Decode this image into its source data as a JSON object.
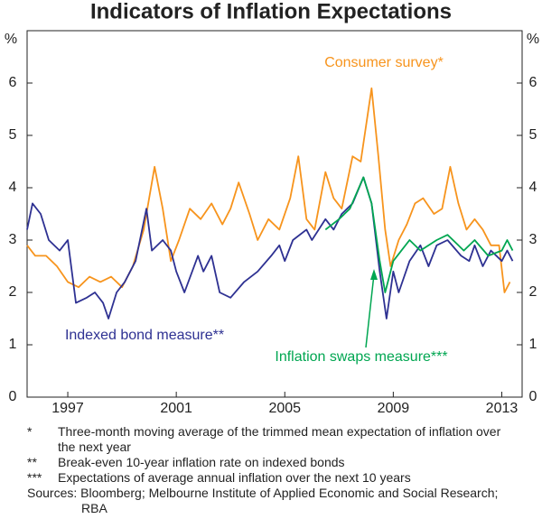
{
  "chart_data": {
    "type": "line",
    "title": "Indicators of Inflation Expectations",
    "y_unit": "%",
    "xlim": [
      1995.5,
      2013.75
    ],
    "xticks": [
      1997,
      2001,
      2005,
      2009,
      2013
    ],
    "ylim": [
      0,
      7
    ],
    "yticks": [
      0,
      1,
      2,
      3,
      4,
      5,
      6
    ],
    "series": [
      {
        "name": "Consumer survey*",
        "color": "#f7941d",
        "x": [
          1995.5,
          1995.8,
          1996.2,
          1996.6,
          1997.0,
          1997.4,
          1997.8,
          1998.2,
          1998.6,
          1999.0,
          1999.4,
          1999.8,
          2000.2,
          2000.5,
          2000.8,
          2001.1,
          2001.5,
          2001.9,
          2002.3,
          2002.7,
          2003.0,
          2003.3,
          2003.7,
          2004.0,
          2004.4,
          2004.8,
          2005.2,
          2005.5,
          2005.8,
          2006.1,
          2006.5,
          2006.8,
          2007.1,
          2007.5,
          2007.8,
          2008.2,
          2008.45,
          2008.7,
          2008.9,
          2009.2,
          2009.5,
          2009.8,
          2010.1,
          2010.5,
          2010.8,
          2011.1,
          2011.4,
          2011.7,
          2012.0,
          2012.3,
          2012.6,
          2012.9,
          2013.1,
          2013.3
        ],
        "values": [
          2.9,
          2.7,
          2.7,
          2.5,
          2.2,
          2.1,
          2.3,
          2.2,
          2.3,
          2.1,
          2.5,
          3.2,
          4.4,
          3.6,
          2.6,
          3.0,
          3.6,
          3.4,
          3.7,
          3.3,
          3.6,
          4.1,
          3.5,
          3.0,
          3.4,
          3.2,
          3.8,
          4.6,
          3.4,
          3.2,
          4.3,
          3.8,
          3.6,
          4.6,
          4.5,
          5.9,
          4.6,
          3.2,
          2.5,
          3.0,
          3.3,
          3.7,
          3.8,
          3.5,
          3.6,
          4.4,
          3.7,
          3.2,
          3.4,
          3.2,
          2.9,
          2.9,
          2.0,
          2.2
        ]
      },
      {
        "name": "Indexed bond measure**",
        "color": "#2e3192",
        "x": [
          1995.5,
          1995.7,
          1996.0,
          1996.3,
          1996.7,
          1997.0,
          1997.3,
          1997.7,
          1998.0,
          1998.3,
          1998.5,
          1998.8,
          1999.1,
          1999.5,
          1999.9,
          2000.1,
          2000.5,
          2000.8,
          2001.0,
          2001.3,
          2001.8,
          2002.0,
          2002.3,
          2002.6,
          2003.0,
          2003.5,
          2004.0,
          2004.5,
          2004.8,
          2005.0,
          2005.3,
          2005.8,
          2006.0,
          2006.5,
          2006.8,
          2007.1,
          2007.5,
          2007.9,
          2008.2,
          2008.5,
          2008.75,
          2009.0,
          2009.2,
          2009.6,
          2010.0,
          2010.3,
          2010.6,
          2011.0,
          2011.5,
          2011.8,
          2012.0,
          2012.3,
          2012.6,
          2013.0,
          2013.2,
          2013.4
        ],
        "values": [
          3.2,
          3.7,
          3.5,
          3.0,
          2.8,
          3.0,
          1.8,
          1.9,
          2.0,
          1.8,
          1.5,
          2.0,
          2.2,
          2.6,
          3.6,
          2.8,
          3.0,
          2.8,
          2.4,
          2.0,
          2.7,
          2.4,
          2.7,
          2.0,
          1.9,
          2.2,
          2.4,
          2.7,
          2.9,
          2.6,
          3.0,
          3.2,
          3.0,
          3.4,
          3.2,
          3.5,
          3.7,
          4.2,
          3.7,
          2.4,
          1.5,
          2.4,
          2.0,
          2.6,
          2.9,
          2.5,
          2.9,
          3.0,
          2.7,
          2.6,
          2.9,
          2.5,
          2.8,
          2.6,
          2.8,
          2.6
        ]
      },
      {
        "name": "Inflation swaps measure***",
        "color": "#00a651",
        "x": [
          2006.5,
          2007.0,
          2007.4,
          2007.9,
          2008.2,
          2008.5,
          2008.7,
          2009.0,
          2009.3,
          2009.6,
          2010.0,
          2010.6,
          2011.0,
          2011.6,
          2012.0,
          2012.5,
          2013.0,
          2013.2,
          2013.4
        ],
        "values": [
          3.2,
          3.4,
          3.6,
          4.2,
          3.7,
          2.6,
          2.0,
          2.6,
          2.8,
          3.0,
          2.8,
          3.0,
          3.1,
          2.8,
          3.0,
          2.7,
          2.8,
          3.0,
          2.8
        ]
      }
    ],
    "notes": [
      {
        "marker": "*",
        "text": "Three-month moving average of the trimmed mean expectation of inflation over the next year"
      },
      {
        "marker": "**",
        "text": "Break-even 10-year inflation rate on indexed bonds"
      },
      {
        "marker": "***",
        "text": "Expectations of average annual inflation over the next 10 years"
      }
    ],
    "sources": "Sources: Bloomberg; Melbourne Institute of Applied Economic and Social Research; RBA"
  }
}
